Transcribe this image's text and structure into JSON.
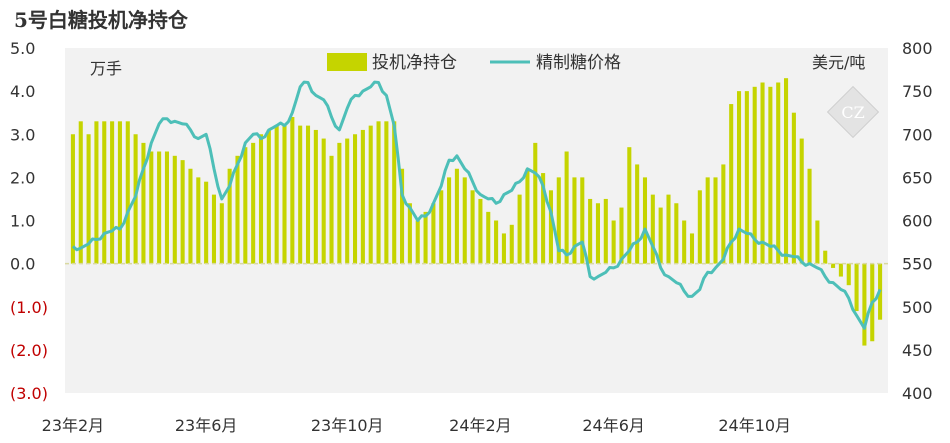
{
  "chart_data": {
    "type": "bar",
    "title": "5号白糖投机净持仓",
    "left_axis_unit": "万手",
    "right_axis_unit": "美元/吨",
    "left_axis": {
      "ylim": [
        -3.0,
        5.0
      ],
      "ticks": [
        5.0,
        4.0,
        3.0,
        2.0,
        1.0,
        0.0,
        -1.0,
        -2.0,
        -3.0
      ],
      "tick_labels": [
        "5.0",
        "4.0",
        "3.0",
        "2.0",
        "1.0",
        "0.0",
        "(1.0)",
        "(2.0)",
        "(3.0)"
      ]
    },
    "right_axis": {
      "ylim": [
        400,
        800
      ],
      "ticks": [
        800,
        750,
        700,
        650,
        600,
        550,
        500,
        450,
        400
      ],
      "tick_labels": [
        "800",
        "750",
        "700",
        "650",
        "600",
        "550",
        "500",
        "450",
        "400"
      ]
    },
    "x_tick_labels": [
      "23年2月",
      "23年6月",
      "23年10月",
      "24年2月",
      "24年6月",
      "24年10月"
    ],
    "x_tick_weeks": [
      0,
      17,
      35,
      52,
      69,
      87
    ],
    "series": [
      {
        "name": "投机净持仓",
        "kind": "bar",
        "color": "#c5d400",
        "axis": "left",
        "values": [
          3.0,
          3.3,
          3.0,
          3.3,
          3.3,
          3.3,
          3.3,
          3.3,
          3.0,
          2.8,
          2.6,
          2.6,
          2.6,
          2.5,
          2.4,
          2.2,
          2.0,
          1.9,
          1.6,
          1.4,
          2.2,
          2.5,
          2.7,
          2.8,
          3.0,
          3.1,
          3.2,
          3.2,
          3.4,
          3.2,
          3.2,
          3.1,
          2.9,
          2.5,
          2.8,
          2.9,
          3.0,
          3.1,
          3.2,
          3.3,
          3.3,
          3.3,
          2.2,
          1.4,
          1.0,
          1.2,
          1.4,
          1.7,
          2.0,
          2.2,
          2.0,
          1.7,
          1.5,
          1.2,
          1.0,
          0.7,
          0.9,
          1.6,
          2.2,
          2.8,
          2.1,
          1.7,
          2.0,
          2.6,
          2.0,
          2.0,
          1.5,
          1.4,
          1.5,
          1.0,
          1.3,
          2.7,
          2.3,
          2.0,
          1.6,
          1.3,
          1.6,
          1.4,
          1.0,
          0.7,
          1.7,
          2.0,
          2.0,
          2.3,
          3.7,
          4.0,
          4.0,
          4.1,
          4.2,
          4.1,
          4.2,
          4.3,
          3.5,
          2.9,
          2.2,
          1.0,
          0.3,
          -0.1,
          -0.3,
          -0.5,
          -1.1,
          -1.9,
          -1.8,
          -1.3
        ]
      },
      {
        "name": "精制糖价格",
        "kind": "line",
        "color": "#4dbfb8",
        "axis": "right",
        "values": [
          570,
          568,
          573,
          578,
          585,
          588,
          590,
          610,
          628,
          660,
          690,
          712,
          718,
          715,
          712,
          705,
          695,
          700,
          660,
          625,
          640,
          665,
          690,
          700,
          695,
          705,
          710,
          710,
          725,
          755,
          760,
          745,
          740,
          720,
          705,
          730,
          745,
          750,
          755,
          760,
          745,
          710,
          630,
          615,
          600,
          605,
          620,
          640,
          670,
          675,
          660,
          645,
          630,
          625,
          620,
          630,
          635,
          645,
          660,
          655,
          640,
          610,
          565,
          560,
          570,
          575,
          535,
          535,
          540,
          545,
          555,
          565,
          575,
          590,
          570,
          545,
          535,
          528,
          518,
          512,
          520,
          540,
          545,
          555,
          575,
          590,
          585,
          578,
          575,
          570,
          565,
          560,
          558,
          552,
          550,
          545,
          535,
          528,
          520,
          510,
          490,
          475,
          505,
          520
        ]
      }
    ],
    "watermark": "CZ",
    "grid": false,
    "legend_position": "top-center"
  }
}
